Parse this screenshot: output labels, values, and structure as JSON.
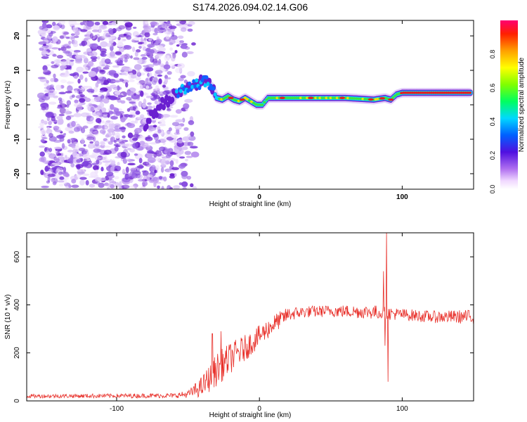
{
  "title": "S174.2026.094.02.14.G06",
  "colors": {
    "snr_line": "#e8302a",
    "axis": "#000000",
    "track_hot": "#e02020",
    "track_mid": "#20e060",
    "noise_dark": "#6a1fd0",
    "noise_light": "#c9a8f2"
  },
  "chart_data": [
    {
      "id": "spectrogram",
      "type": "heatmap",
      "xlabel": "Height of straight line (km)",
      "ylabel": "Frequency (Hz)",
      "xlim": [
        -163,
        150
      ],
      "ylim": [
        -24.5,
        24.5
      ],
      "x_ticks": [
        -100,
        0,
        100
      ],
      "x_tick_labels": [
        "-100",
        "0",
        "100"
      ],
      "y_ticks": [
        -20,
        -10,
        0,
        10,
        20
      ],
      "y_tick_labels": [
        "-20",
        "-10",
        "0",
        "10",
        "20"
      ],
      "noise_region_x": [
        -163,
        -55
      ],
      "signal_track": {
        "x": [
          -80,
          -73,
          -66,
          -58,
          -50,
          -44,
          -38,
          -33,
          -30,
          -26,
          -22,
          -18,
          -14,
          -10,
          -6,
          -2,
          2,
          6,
          10,
          20,
          40,
          60,
          80,
          88,
          92,
          96,
          100,
          120,
          148
        ],
        "freq": [
          -6,
          -2,
          1,
          3,
          5,
          6,
          7,
          5,
          2,
          1.5,
          2.5,
          1.5,
          1,
          2,
          1,
          0,
          0,
          2,
          2,
          2,
          2,
          2,
          1.5,
          2,
          1.5,
          3,
          3.5,
          3.5,
          3.5
        ]
      },
      "colorbar": {
        "label": "Normalized spectral amplitude",
        "range": [
          0,
          1
        ],
        "ticks": [
          0.0,
          0.2,
          0.4,
          0.6,
          0.8
        ],
        "tick_labels": [
          "0.0",
          "0.2",
          "0.4",
          "0.6",
          "0.8"
        ]
      }
    },
    {
      "id": "snr",
      "type": "line",
      "xlabel": "Height of straight line (km)",
      "ylabel": "SNR (10 * v/v)",
      "xlim": [
        -163,
        150
      ],
      "ylim": [
        0,
        700
      ],
      "x_ticks": [
        -100,
        0,
        100
      ],
      "x_tick_labels": [
        "-100",
        "0",
        "100"
      ],
      "y_ticks": [
        0,
        200,
        400,
        600
      ],
      "y_tick_labels": [
        "0",
        "200",
        "400",
        "600"
      ],
      "envelope": {
        "x": [
          -163,
          -60,
          -50,
          -40,
          -30,
          -20,
          -10,
          0,
          10,
          20,
          30,
          50,
          80,
          100,
          120,
          150
        ],
        "mean": [
          20,
          22,
          28,
          60,
          130,
          180,
          220,
          270,
          320,
          360,
          370,
          375,
          370,
          360,
          350,
          350
        ],
        "noise": [
          8,
          10,
          15,
          45,
          70,
          65,
          55,
          45,
          40,
          30,
          25,
          25,
          30,
          25,
          25,
          30
        ]
      },
      "peaks": [
        {
          "x": 89,
          "y": 700
        },
        {
          "x": 90,
          "y": 80
        },
        {
          "x": 87,
          "y": 540
        },
        {
          "x": 88,
          "y": 230
        },
        {
          "x": -27,
          "y": 290
        },
        {
          "x": -33,
          "y": 280
        }
      ]
    }
  ]
}
